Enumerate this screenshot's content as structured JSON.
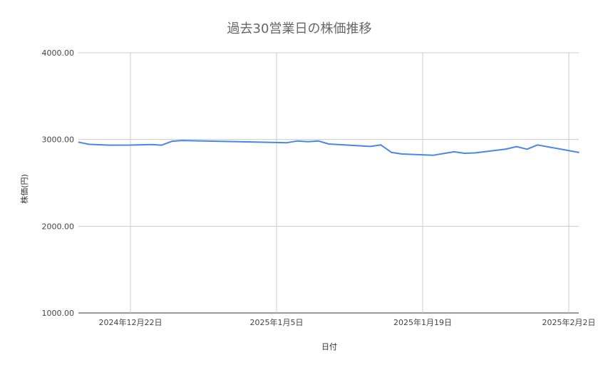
{
  "chart_data": {
    "type": "line",
    "title": "過去30営業日の株価推移",
    "xlabel": "日付",
    "ylabel": "株価(円)",
    "ylim": [
      1000,
      4000
    ],
    "xlim": [
      "2024-12-17",
      "2025-02-03"
    ],
    "yticks": [
      "1000.00",
      "2000.00",
      "3000.00",
      "4000.00"
    ],
    "xticks": [
      {
        "date": "2024-12-22",
        "label": "2024年12月22日"
      },
      {
        "date": "2025-01-05",
        "label": "2025年1月5日"
      },
      {
        "date": "2025-01-19",
        "label": "2025年1月19日"
      },
      {
        "date": "2025-02-02",
        "label": "2025年2月2日"
      }
    ],
    "grid": true,
    "line_color": "#4a86e8",
    "series": [
      {
        "points": [
          [
            "2024-12-17",
            2970
          ],
          [
            "2024-12-18",
            2945
          ],
          [
            "2024-12-19",
            2940
          ],
          [
            "2024-12-20",
            2935
          ],
          [
            "2024-12-22",
            2936
          ],
          [
            "2024-12-24",
            2942
          ],
          [
            "2024-12-25",
            2935
          ],
          [
            "2024-12-26",
            2980
          ],
          [
            "2024-12-27",
            2988
          ],
          [
            "2025-01-05",
            2965
          ],
          [
            "2025-01-06",
            2963
          ],
          [
            "2025-01-07",
            2983
          ],
          [
            "2025-01-08",
            2975
          ],
          [
            "2025-01-09",
            2983
          ],
          [
            "2025-01-10",
            2948
          ],
          [
            "2025-01-14",
            2920
          ],
          [
            "2025-01-15",
            2937
          ],
          [
            "2025-01-16",
            2852
          ],
          [
            "2025-01-17",
            2833
          ],
          [
            "2025-01-20",
            2818
          ],
          [
            "2025-01-22",
            2858
          ],
          [
            "2025-01-23",
            2841
          ],
          [
            "2025-01-24",
            2845
          ],
          [
            "2025-01-27",
            2890
          ],
          [
            "2025-01-28",
            2918
          ],
          [
            "2025-01-29",
            2888
          ],
          [
            "2025-01-30",
            2937
          ],
          [
            "2025-02-03",
            2850
          ]
        ]
      }
    ]
  }
}
